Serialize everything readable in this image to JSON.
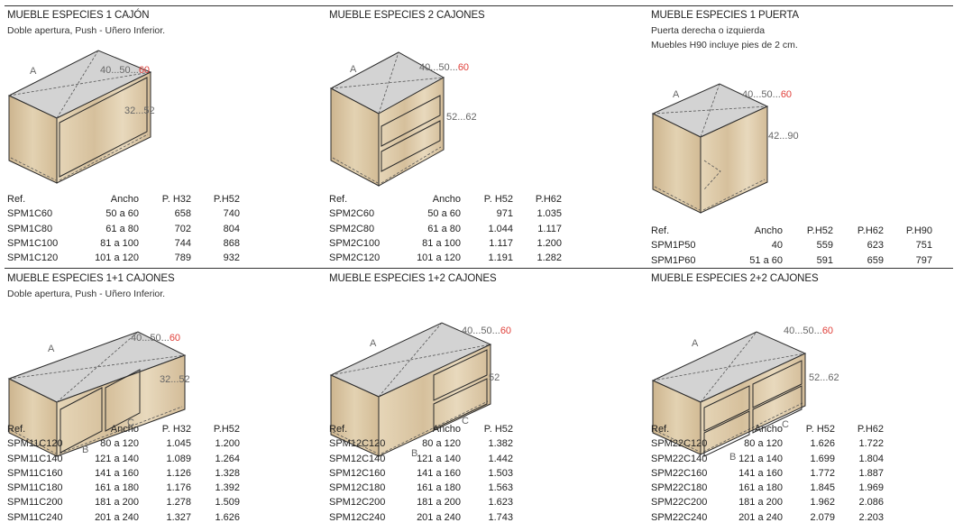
{
  "modules": [
    {
      "title": "MUEBLE ESPECIES 1 CAJÓN",
      "subtitles": [
        "Doble apertura, Push - Uñero Inferior."
      ],
      "dims": {
        "width_prefix": "40...50...",
        "width_highlight": "60",
        "height": "32...52"
      },
      "letters": [
        "A"
      ],
      "table": {
        "headers": [
          "Ref.",
          "Ancho",
          "P. H32",
          "P.H52"
        ],
        "rows": [
          [
            "SPM1C60",
            "50 a 60",
            "658",
            "740"
          ],
          [
            "SPM1C80",
            "61 a 80",
            "702",
            "804"
          ],
          [
            "SPM1C100",
            "81 a 100",
            "744",
            "868"
          ],
          [
            "SPM1C120",
            "101 a 120",
            "789",
            "932"
          ]
        ]
      }
    },
    {
      "title": "MUEBLE ESPECIES 2 CAJONES",
      "subtitles": [],
      "dims": {
        "width_prefix": "40...50...",
        "width_highlight": "60",
        "height": "52...62"
      },
      "letters": [
        "A"
      ],
      "table": {
        "headers": [
          "Ref.",
          "Ancho",
          "P. H52",
          "P.H62"
        ],
        "rows": [
          [
            "SPM2C60",
            "50 a 60",
            "971",
            "1.035"
          ],
          [
            "SPM2C80",
            "61 a 80",
            "1.044",
            "1.117"
          ],
          [
            "SPM2C100",
            "81 a 100",
            "1.117",
            "1.200"
          ],
          [
            "SPM2C120",
            "101 a 120",
            "1.191",
            "1.282"
          ]
        ]
      }
    },
    {
      "title": "MUEBLE ESPECIES 1 PUERTA",
      "subtitles": [
        "Puerta derecha o izquierda",
        "Muebles H90 incluye pies de 2 cm."
      ],
      "dims": {
        "width_prefix": "40...50...",
        "width_highlight": "60",
        "height": "42...90"
      },
      "letters": [
        "A"
      ],
      "table": {
        "headers": [
          "Ref.",
          "Ancho",
          "P.H52",
          "P.H62",
          "P.H90"
        ],
        "rows": [
          [
            "SPM1P50",
            "40",
            "559",
            "623",
            "751"
          ],
          [
            "SPM1P60",
            "51 a 60",
            "591",
            "659",
            "797"
          ]
        ]
      }
    },
    {
      "title": "MUEBLE ESPECIES 1+1 CAJONES",
      "subtitles": [
        "Doble apertura, Push - Uñero Inferior."
      ],
      "dims": {
        "width_prefix": "40...50...",
        "width_highlight": "60",
        "height": "32...52"
      },
      "letters": [
        "A",
        "B",
        "C"
      ],
      "table": {
        "headers": [
          "Ref.",
          "Ancho",
          "P. H32",
          "P.H52"
        ],
        "rows": [
          [
            "SPM11C120",
            "80 a 120",
            "1.045",
            "1.200"
          ],
          [
            "SPM11C140",
            "121 a 140",
            "1.089",
            "1.264"
          ],
          [
            "SPM11C160",
            "141 a 160",
            "1.126",
            "1.328"
          ],
          [
            "SPM11C180",
            "161 a 180",
            "1.176",
            "1.392"
          ],
          [
            "SPM11C200",
            "181 a 200",
            "1.278",
            "1.509"
          ],
          [
            "SPM11C240",
            "201 a 240",
            "1.327",
            "1.626"
          ]
        ]
      }
    },
    {
      "title": "MUEBLE ESPECIES 1+2 CAJONES",
      "subtitles": [],
      "dims": {
        "width_prefix": "40...50...",
        "width_highlight": "60",
        "height": "52"
      },
      "letters": [
        "A",
        "B",
        "C"
      ],
      "table": {
        "headers": [
          "Ref.",
          "Ancho",
          "P. H52"
        ],
        "rows": [
          [
            "SPM12C120",
            "80 a 120",
            "1.382"
          ],
          [
            "SPM12C140",
            "121 a 140",
            "1.442"
          ],
          [
            "SPM12C160",
            "141 a 160",
            "1.503"
          ],
          [
            "SPM12C180",
            "161 a 180",
            "1.563"
          ],
          [
            "SPM12C200",
            "181 a 200",
            "1.623"
          ],
          [
            "SPM12C240",
            "201 a 240",
            "1.743"
          ]
        ]
      }
    },
    {
      "title": "MUEBLE ESPECIES 2+2 CAJONES",
      "subtitles": [],
      "dims": {
        "width_prefix": "40...50...",
        "width_highlight": "60",
        "height": "52...62"
      },
      "letters": [
        "A",
        "B",
        "C"
      ],
      "table": {
        "headers": [
          "Ref.",
          "Ancho",
          "P. H52",
          "P.H62"
        ],
        "rows": [
          [
            "SPM22C120",
            "80 a 120",
            "1.626",
            "1.722"
          ],
          [
            "SPM22C140",
            "121 a 140",
            "1.699",
            "1.804"
          ],
          [
            "SPM22C160",
            "141 a 160",
            "1.772",
            "1.887"
          ],
          [
            "SPM22C180",
            "161 a 180",
            "1.845",
            "1.969"
          ],
          [
            "SPM22C200",
            "181 a 200",
            "1.962",
            "2.086"
          ],
          [
            "SPM22C240",
            "201 a 240",
            "2.079",
            "2.203"
          ]
        ]
      }
    }
  ],
  "colors": {
    "highlight": "#e0403a",
    "wood": "#ddc9a6",
    "wood_dark": "#c9b08a",
    "top": "#d3d3d3",
    "line": "#2a2a2a"
  }
}
